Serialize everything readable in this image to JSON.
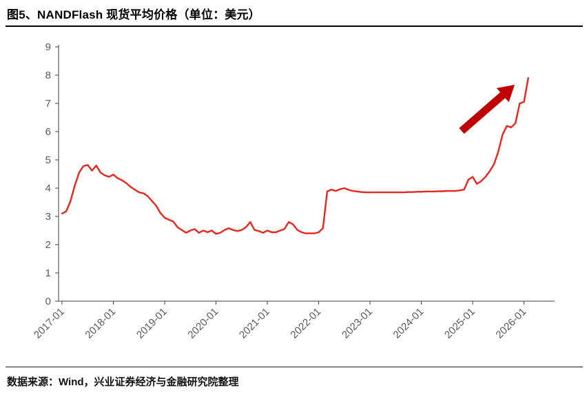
{
  "header": {
    "title": "图5、NANDFlash 现货平均价格（单位：美元）"
  },
  "footer": {
    "source": "数据来源：Wind，兴业证券经济与金融研究院整理"
  },
  "colors": {
    "line": "#e8251d",
    "arrow": "#c00000",
    "axis": "#404040",
    "tick_label": "#595959",
    "title": "#000000",
    "divider": "#000000"
  },
  "chart_data": {
    "type": "line",
    "title": "图5、NANDFlash 现货平均价格（单位：美元）",
    "unit": "美元",
    "grid": false,
    "legend": "none",
    "ylim": [
      0,
      9
    ],
    "y_ticks": [
      0,
      1,
      2,
      3,
      4,
      5,
      6,
      7,
      8,
      9
    ],
    "x_tick_labels": [
      "2017-01",
      "2018-01",
      "2019-01",
      "2020-01",
      "2021-01",
      "2022-01",
      "2023-01",
      "2024-01",
      "2025-01",
      "2026-01"
    ],
    "x_tick_years": [
      2017,
      2018,
      2019,
      2020,
      2021,
      2022,
      2023,
      2024,
      2025,
      2026
    ],
    "x_start": "2017-01",
    "x_interval": "monthly",
    "annotation": "red up-right arrow above late-2025 data indicating sharp price surge",
    "series": [
      {
        "name": "NANDFlash现货平均价格",
        "values": [
          3.1,
          3.18,
          3.55,
          4.1,
          4.55,
          4.78,
          4.82,
          4.62,
          4.8,
          4.55,
          4.45,
          4.4,
          4.48,
          4.35,
          4.28,
          4.18,
          4.05,
          3.95,
          3.85,
          3.82,
          3.72,
          3.55,
          3.38,
          3.12,
          2.95,
          2.88,
          2.82,
          2.62,
          2.52,
          2.42,
          2.5,
          2.55,
          2.42,
          2.5,
          2.44,
          2.5,
          2.38,
          2.42,
          2.52,
          2.58,
          2.52,
          2.48,
          2.52,
          2.62,
          2.8,
          2.52,
          2.48,
          2.42,
          2.5,
          2.44,
          2.44,
          2.5,
          2.55,
          2.8,
          2.72,
          2.52,
          2.44,
          2.4,
          2.4,
          2.4,
          2.44,
          2.58,
          3.88,
          3.95,
          3.9,
          3.96,
          4.0,
          3.94,
          3.9,
          3.88,
          3.86,
          3.85,
          3.85,
          3.85,
          3.85,
          3.85,
          3.85,
          3.85,
          3.85,
          3.85,
          3.85,
          3.86,
          3.86,
          3.87,
          3.87,
          3.88,
          3.88,
          3.88,
          3.89,
          3.89,
          3.9,
          3.9,
          3.9,
          3.92,
          3.95,
          4.3,
          4.4,
          4.15,
          4.25,
          4.4,
          4.6,
          4.85,
          5.3,
          5.9,
          6.2,
          6.15,
          6.3,
          7.0,
          7.05,
          7.9
        ]
      }
    ]
  }
}
